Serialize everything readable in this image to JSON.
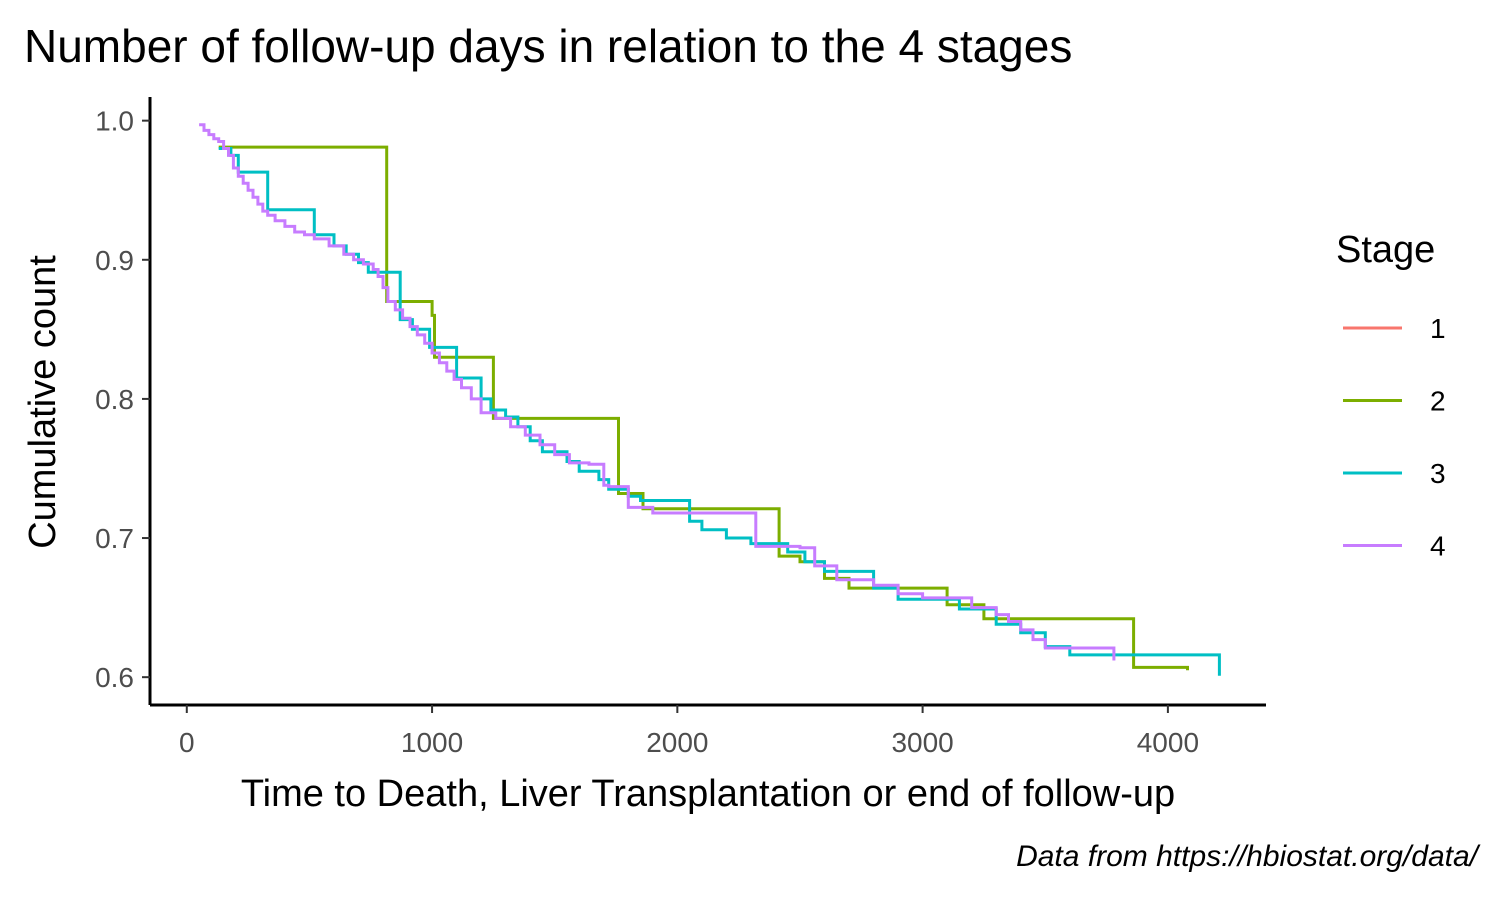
{
  "chart_data": {
    "type": "line",
    "step": true,
    "title": "Number of follow-up days in relation to the 4 stages",
    "xlabel": "Time to Death, Liver Transplantation or end of follow-up",
    "ylabel": "Cumulative count",
    "caption": "Data from https://hbiostat.org/data/",
    "xlim": [
      -150,
      4400
    ],
    "ylim": [
      0.58,
      1.017
    ],
    "x_ticks": [
      0,
      1000,
      2000,
      3000,
      4000
    ],
    "x_tick_labels": [
      "0",
      "1000",
      "2000",
      "3000",
      "4000"
    ],
    "y_ticks": [
      0.6,
      0.7,
      0.8,
      0.9,
      1.0
    ],
    "y_tick_labels": [
      "0.6",
      "0.7",
      "0.8",
      "0.9",
      "1.0"
    ],
    "grid": false,
    "legend": {
      "title": "Stage",
      "position": "right"
    },
    "series": [
      {
        "name": "1",
        "color": "#F8766D",
        "x": [],
        "y": []
      },
      {
        "name": "2",
        "color": "#7CAE00",
        "x": [
          130,
          800,
          815,
          1000,
          1010,
          1240,
          1250,
          1750,
          1760,
          1860,
          2400,
          2415,
          2500,
          2600,
          2700,
          3090,
          3100,
          3250,
          3850,
          3860,
          4080
        ],
        "y": [
          0.981,
          0.981,
          0.87,
          0.86,
          0.83,
          0.83,
          0.786,
          0.786,
          0.732,
          0.721,
          0.721,
          0.687,
          0.683,
          0.671,
          0.664,
          0.664,
          0.652,
          0.642,
          0.642,
          0.607,
          0.605
        ]
      },
      {
        "name": "3",
        "color": "#00BFC4",
        "x": [
          130,
          180,
          210,
          320,
          330,
          510,
          520,
          600,
          650,
          700,
          740,
          860,
          870,
          920,
          990,
          1080,
          1100,
          1200,
          1240,
          1300,
          1350,
          1400,
          1450,
          1550,
          1600,
          1680,
          1720,
          1800,
          1850,
          1900,
          2000,
          2050,
          2100,
          2200,
          2300,
          2450,
          2520,
          2600,
          2750,
          2800,
          2900,
          3050,
          3150,
          3300,
          3400,
          3500,
          3600,
          4200,
          4210
        ],
        "y": [
          0.98,
          0.975,
          0.963,
          0.963,
          0.936,
          0.936,
          0.918,
          0.91,
          0.904,
          0.898,
          0.891,
          0.891,
          0.857,
          0.85,
          0.837,
          0.837,
          0.815,
          0.8,
          0.792,
          0.787,
          0.78,
          0.77,
          0.762,
          0.755,
          0.748,
          0.742,
          0.735,
          0.73,
          0.727,
          0.727,
          0.727,
          0.712,
          0.706,
          0.7,
          0.696,
          0.69,
          0.683,
          0.676,
          0.676,
          0.664,
          0.656,
          0.656,
          0.649,
          0.638,
          0.632,
          0.622,
          0.616,
          0.616,
          0.601
        ]
      },
      {
        "name": "4",
        "color": "#C77CFF",
        "x": [
          50,
          70,
          90,
          110,
          130,
          150,
          170,
          190,
          210,
          230,
          250,
          270,
          290,
          310,
          330,
          360,
          400,
          440,
          480,
          520,
          580,
          640,
          680,
          720,
          760,
          780,
          800,
          820,
          850,
          880,
          910,
          940,
          970,
          1000,
          1030,
          1060,
          1090,
          1120,
          1160,
          1200,
          1260,
          1320,
          1380,
          1440,
          1500,
          1560,
          1640,
          1700,
          1720,
          1800,
          1900,
          2000,
          2100,
          2300,
          2320,
          2400,
          2500,
          2550,
          2560,
          2650,
          2800,
          2900,
          3000,
          3100,
          3200,
          3300,
          3350,
          3400,
          3450,
          3500,
          3770,
          3780
        ],
        "y": [
          0.997,
          0.993,
          0.99,
          0.987,
          0.985,
          0.98,
          0.975,
          0.966,
          0.96,
          0.955,
          0.95,
          0.945,
          0.94,
          0.935,
          0.932,
          0.928,
          0.924,
          0.92,
          0.918,
          0.915,
          0.91,
          0.904,
          0.9,
          0.897,
          0.893,
          0.888,
          0.88,
          0.87,
          0.864,
          0.858,
          0.852,
          0.846,
          0.84,
          0.833,
          0.826,
          0.82,
          0.814,
          0.808,
          0.8,
          0.79,
          0.786,
          0.78,
          0.774,
          0.767,
          0.76,
          0.754,
          0.753,
          0.738,
          0.737,
          0.722,
          0.718,
          0.718,
          0.718,
          0.718,
          0.694,
          0.694,
          0.693,
          0.693,
          0.68,
          0.67,
          0.666,
          0.66,
          0.657,
          0.657,
          0.65,
          0.645,
          0.64,
          0.634,
          0.627,
          0.621,
          0.621,
          0.612
        ]
      }
    ]
  }
}
